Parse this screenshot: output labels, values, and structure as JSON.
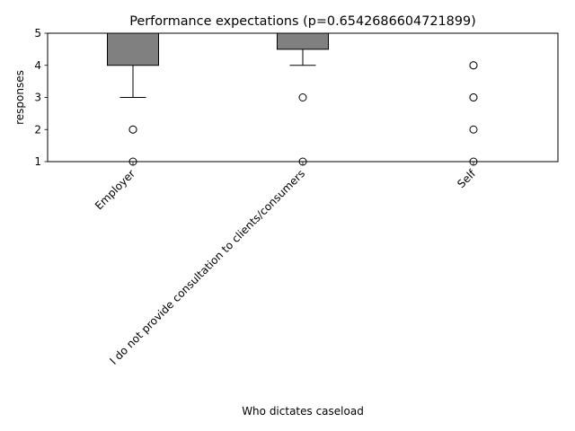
{
  "chart_data": {
    "type": "box",
    "title": "Performance expectations (p=0.6542686604721899)",
    "xlabel": "Who dictates caseload",
    "ylabel": "responses",
    "ylim": [
      1,
      5
    ],
    "yticks": [
      1,
      2,
      3,
      4,
      5
    ],
    "grid": false,
    "categories": [
      "Employer",
      "I do not provide consultation to clients/consumers",
      "Self"
    ],
    "boxes": [
      {
        "q1": 4,
        "median": 5,
        "q3": 5,
        "whisker_low": 3,
        "whisker_high": 5,
        "outliers": [
          2,
          2,
          1
        ]
      },
      {
        "q1": 4.5,
        "median": 5,
        "q3": 5,
        "whisker_low": 4,
        "whisker_high": 5,
        "outliers": [
          3,
          1
        ]
      },
      {
        "q1": 5,
        "median": 5,
        "q3": 5,
        "whisker_low": 5,
        "whisker_high": 5,
        "outliers": [
          4,
          4,
          3,
          3,
          2,
          1
        ]
      }
    ],
    "colors": {
      "box_fill": "#808080",
      "line": "#000000",
      "outlier_fill": "#ffffff"
    }
  }
}
